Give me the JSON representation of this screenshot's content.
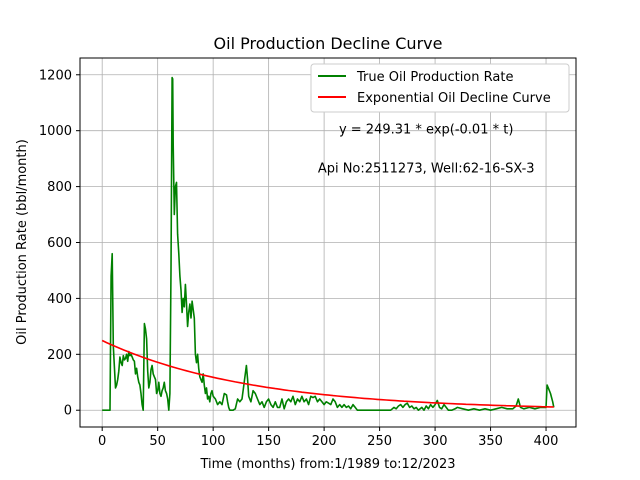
{
  "chart_data": {
    "type": "line",
    "title": "Oil Production Decline Curve",
    "xlabel": "Time (months) from:1/1989 to:12/2023",
    "ylabel": "Oil Production Rate (bbl/month)",
    "xlim": [
      -20,
      427
    ],
    "ylim": [
      -60,
      1260
    ],
    "xticks": [
      0,
      50,
      100,
      150,
      200,
      250,
      300,
      350,
      400
    ],
    "yticks": [
      0,
      200,
      400,
      600,
      800,
      1000,
      1200
    ],
    "grid": true,
    "legend_position": "top-right",
    "annotations": [
      {
        "text": "y = 249.31 * exp(-0.01 * t)",
        "x": 292,
        "y": 990
      },
      {
        "text": "Api No:2511273, Well:62-16-SX-3",
        "x": 292,
        "y": 850
      }
    ],
    "series": [
      {
        "name": "True Oil Production Rate",
        "color": "#008000",
        "points": [
          [
            0,
            0
          ],
          [
            5,
            0
          ],
          [
            7,
            0
          ],
          [
            8,
            480
          ],
          [
            9,
            560
          ],
          [
            10,
            230
          ],
          [
            12,
            80
          ],
          [
            13,
            90
          ],
          [
            14,
            110
          ],
          [
            15,
            140
          ],
          [
            16,
            190
          ],
          [
            17,
            170
          ],
          [
            18,
            160
          ],
          [
            19,
            195
          ],
          [
            20,
            180
          ],
          [
            21,
            185
          ],
          [
            22,
            200
          ],
          [
            23,
            175
          ],
          [
            24,
            210
          ],
          [
            25,
            195
          ],
          [
            26,
            200
          ],
          [
            27,
            190
          ],
          [
            28,
            180
          ],
          [
            29,
            175
          ],
          [
            30,
            130
          ],
          [
            31,
            150
          ],
          [
            32,
            120
          ],
          [
            33,
            100
          ],
          [
            34,
            90
          ],
          [
            35,
            60
          ],
          [
            36,
            20
          ],
          [
            37,
            0
          ],
          [
            38,
            310
          ],
          [
            39,
            290
          ],
          [
            40,
            255
          ],
          [
            41,
            140
          ],
          [
            42,
            80
          ],
          [
            43,
            100
          ],
          [
            44,
            145
          ],
          [
            45,
            160
          ],
          [
            46,
            130
          ],
          [
            47,
            120
          ],
          [
            48,
            110
          ],
          [
            49,
            60
          ],
          [
            50,
            70
          ],
          [
            51,
            100
          ],
          [
            52,
            60
          ],
          [
            53,
            50
          ],
          [
            54,
            70
          ],
          [
            55,
            80
          ],
          [
            56,
            100
          ],
          [
            57,
            70
          ],
          [
            58,
            60
          ],
          [
            59,
            40
          ],
          [
            60,
            0
          ],
          [
            61,
            60
          ],
          [
            62,
            500
          ],
          [
            63,
            1190
          ],
          [
            63.5,
            1185
          ],
          [
            64,
            950
          ],
          [
            65,
            700
          ],
          [
            66,
            800
          ],
          [
            67,
            815
          ],
          [
            68,
            630
          ],
          [
            69,
            560
          ],
          [
            70,
            480
          ],
          [
            71,
            430
          ],
          [
            72,
            350
          ],
          [
            73,
            400
          ],
          [
            74,
            370
          ],
          [
            75,
            450
          ],
          [
            76,
            380
          ],
          [
            77,
            300
          ],
          [
            78,
            350
          ],
          [
            79,
            380
          ],
          [
            80,
            330
          ],
          [
            81,
            390
          ],
          [
            82,
            360
          ],
          [
            83,
            330
          ],
          [
            84,
            200
          ],
          [
            85,
            170
          ],
          [
            86,
            200
          ],
          [
            87,
            150
          ],
          [
            88,
            120
          ],
          [
            89,
            110
          ],
          [
            90,
            100
          ],
          [
            91,
            130
          ],
          [
            92,
            90
          ],
          [
            93,
            60
          ],
          [
            94,
            80
          ],
          [
            95,
            40
          ],
          [
            96,
            50
          ],
          [
            97,
            30
          ],
          [
            98,
            60
          ],
          [
            99,
            70
          ],
          [
            100,
            50
          ],
          [
            102,
            40
          ],
          [
            104,
            20
          ],
          [
            106,
            30
          ],
          [
            108,
            20
          ],
          [
            110,
            60
          ],
          [
            112,
            55
          ],
          [
            113,
            30
          ],
          [
            114,
            10
          ],
          [
            115,
            0
          ],
          [
            118,
            0
          ],
          [
            120,
            5
          ],
          [
            122,
            40
          ],
          [
            124,
            30
          ],
          [
            126,
            40
          ],
          [
            128,
            100
          ],
          [
            130,
            160
          ],
          [
            131,
            110
          ],
          [
            132,
            50
          ],
          [
            134,
            30
          ],
          [
            136,
            70
          ],
          [
            138,
            60
          ],
          [
            140,
            40
          ],
          [
            142,
            20
          ],
          [
            144,
            30
          ],
          [
            146,
            10
          ],
          [
            148,
            30
          ],
          [
            150,
            40
          ],
          [
            152,
            20
          ],
          [
            154,
            10
          ],
          [
            156,
            30
          ],
          [
            158,
            10
          ],
          [
            160,
            10
          ],
          [
            162,
            40
          ],
          [
            164,
            5
          ],
          [
            166,
            30
          ],
          [
            168,
            40
          ],
          [
            170,
            30
          ],
          [
            172,
            50
          ],
          [
            174,
            20
          ],
          [
            176,
            40
          ],
          [
            178,
            30
          ],
          [
            180,
            50
          ],
          [
            182,
            30
          ],
          [
            184,
            40
          ],
          [
            186,
            20
          ],
          [
            188,
            50
          ],
          [
            190,
            45
          ],
          [
            192,
            50
          ],
          [
            194,
            30
          ],
          [
            196,
            40
          ],
          [
            198,
            30
          ],
          [
            200,
            20
          ],
          [
            202,
            30
          ],
          [
            204,
            25
          ],
          [
            206,
            20
          ],
          [
            208,
            40
          ],
          [
            210,
            30
          ],
          [
            212,
            10
          ],
          [
            214,
            20
          ],
          [
            216,
            10
          ],
          [
            218,
            20
          ],
          [
            220,
            10
          ],
          [
            222,
            15
          ],
          [
            224,
            5
          ],
          [
            226,
            20
          ],
          [
            228,
            10
          ],
          [
            230,
            0
          ],
          [
            235,
            0
          ],
          [
            240,
            0
          ],
          [
            245,
            0
          ],
          [
            250,
            0
          ],
          [
            255,
            0
          ],
          [
            260,
            0
          ],
          [
            263,
            10
          ],
          [
            265,
            5
          ],
          [
            267,
            15
          ],
          [
            269,
            20
          ],
          [
            271,
            10
          ],
          [
            273,
            20
          ],
          [
            275,
            25
          ],
          [
            277,
            10
          ],
          [
            279,
            15
          ],
          [
            281,
            5
          ],
          [
            283,
            10
          ],
          [
            285,
            0
          ],
          [
            288,
            10
          ],
          [
            290,
            0
          ],
          [
            292,
            15
          ],
          [
            294,
            5
          ],
          [
            296,
            20
          ],
          [
            298,
            10
          ],
          [
            300,
            20
          ],
          [
            302,
            35
          ],
          [
            304,
            10
          ],
          [
            306,
            5
          ],
          [
            308,
            20
          ],
          [
            310,
            10
          ],
          [
            312,
            0
          ],
          [
            315,
            0
          ],
          [
            318,
            5
          ],
          [
            320,
            10
          ],
          [
            325,
            5
          ],
          [
            330,
            0
          ],
          [
            335,
            5
          ],
          [
            340,
            0
          ],
          [
            345,
            5
          ],
          [
            350,
            0
          ],
          [
            355,
            5
          ],
          [
            360,
            10
          ],
          [
            365,
            5
          ],
          [
            370,
            5
          ],
          [
            373,
            15
          ],
          [
            375,
            40
          ],
          [
            377,
            10
          ],
          [
            380,
            5
          ],
          [
            385,
            10
          ],
          [
            390,
            5
          ],
          [
            395,
            10
          ],
          [
            400,
            10
          ],
          [
            401,
            90
          ],
          [
            402,
            80
          ],
          [
            404,
            60
          ],
          [
            406,
            30
          ],
          [
            407,
            10
          ]
        ]
      },
      {
        "name": "Exponential Oil Decline Curve",
        "color": "#ff0000",
        "model": {
          "a": 249.31,
          "b": 0.0075,
          "x_start": 0,
          "x_end": 407
        }
      }
    ]
  }
}
